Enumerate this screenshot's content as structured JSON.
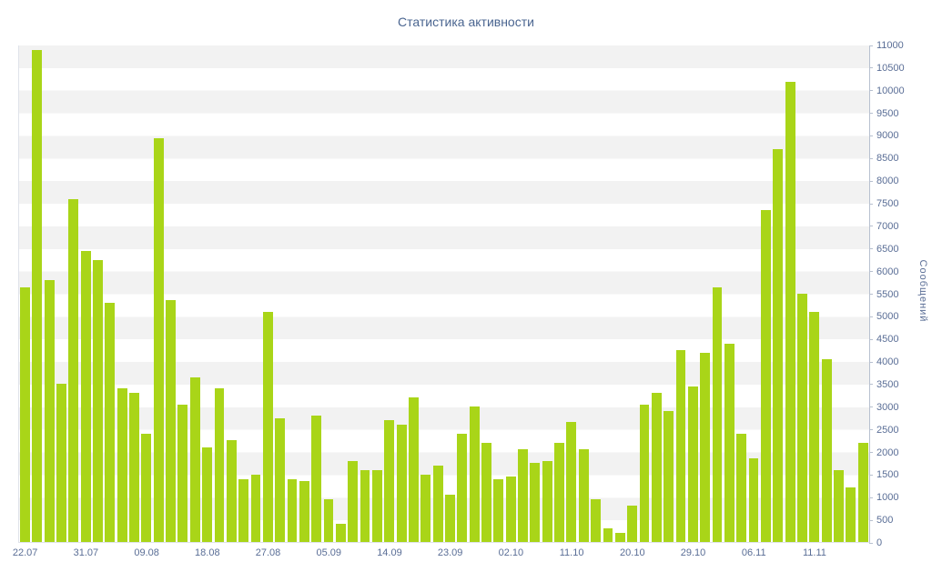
{
  "chart": {
    "title": "Статистика активности",
    "ylabel": "Сообщений"
  },
  "colors": {
    "bar_color": "#a9d518",
    "axis_text_color": "#5a6e96",
    "title_color": "#4a6590",
    "stripe_color": "#f2f2f2"
  },
  "chart_data": {
    "type": "bar",
    "title": "Статистика активности",
    "xlabel": "",
    "ylabel": "Сообщений",
    "ylim": [
      0,
      11000
    ],
    "ytick_step": 500,
    "ytick_labels": [
      "0",
      "500",
      "1000",
      "1500",
      "2000",
      "2500",
      "3000",
      "3500",
      "4000",
      "4500",
      "5000",
      "5500",
      "6000",
      "6500",
      "7000",
      "7500",
      "8000",
      "8500",
      "9000",
      "9500",
      "10000",
      "10500",
      "11000"
    ],
    "x_tick_labels": [
      "22.07",
      "31.07",
      "09.08",
      "18.08",
      "27.08",
      "05.09",
      "14.09",
      "23.09",
      "02.10",
      "11.10",
      "20.10",
      "29.10",
      "06.11",
      "11.11"
    ],
    "x_label_every_n_bars": 5,
    "grid": "horizontal-stripes",
    "legend": "none",
    "values": [
      5650,
      10900,
      5800,
      3500,
      7600,
      6450,
      6250,
      5300,
      3400,
      3300,
      2400,
      8950,
      5350,
      3050,
      3650,
      2100,
      3400,
      2250,
      1400,
      1500,
      5100,
      2750,
      1400,
      1350,
      2800,
      950,
      400,
      1800,
      1600,
      1600,
      2700,
      2600,
      3200,
      1500,
      1700,
      1050,
      2400,
      3000,
      2200,
      1400,
      1450,
      2050,
      1750,
      1800,
      2200,
      2650,
      2050,
      950,
      300,
      200,
      800,
      3050,
      3300,
      2900,
      4250,
      3450,
      4200,
      5650,
      4400,
      2400,
      1850,
      7350,
      8700,
      10200,
      5500,
      5100,
      4050,
      1600,
      1200,
      2200
    ]
  }
}
